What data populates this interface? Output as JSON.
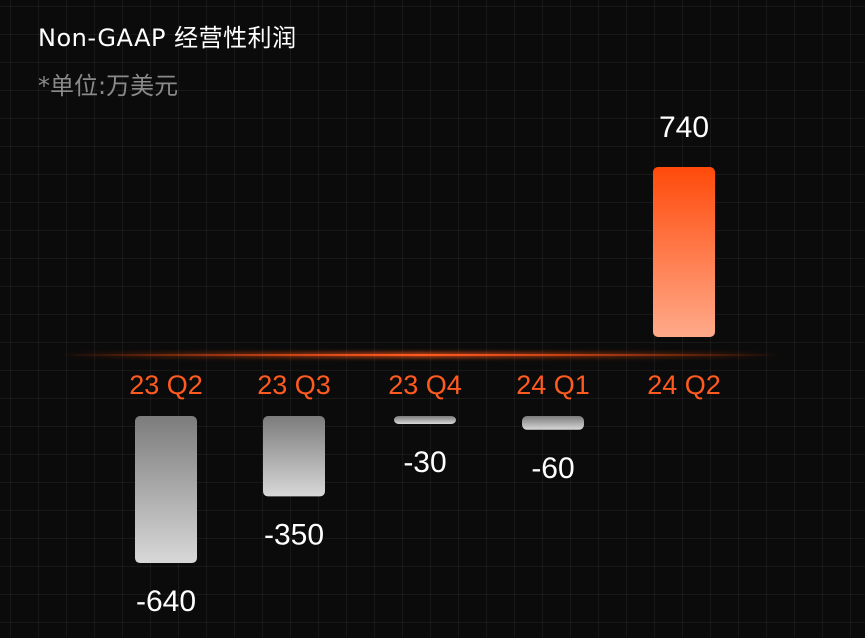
{
  "title": "Non-GAAP 经营性利润",
  "subtitle": "*单位:万美元",
  "colors": {
    "background": "#0b0b0b",
    "positive_top": "#ff4a0a",
    "positive_bottom": "#ffaa8a",
    "negative_top": "#7c7c7c",
    "negative_bottom": "#d8d8d8",
    "category_label": "#ff5a1f",
    "value_label": "#ffffff"
  },
  "chart_data": {
    "type": "bar",
    "categories": [
      "23 Q2",
      "23 Q3",
      "23 Q4",
      "24 Q1",
      "24 Q2"
    ],
    "values": [
      -640,
      -350,
      -30,
      -60,
      740
    ],
    "value_labels": [
      "-640",
      "-350",
      "-30",
      "-60",
      "740"
    ],
    "title": "Non-GAAP 经营性利润",
    "subtitle": "*单位:万美元",
    "xlabel": "",
    "ylabel": "",
    "grid": true
  }
}
